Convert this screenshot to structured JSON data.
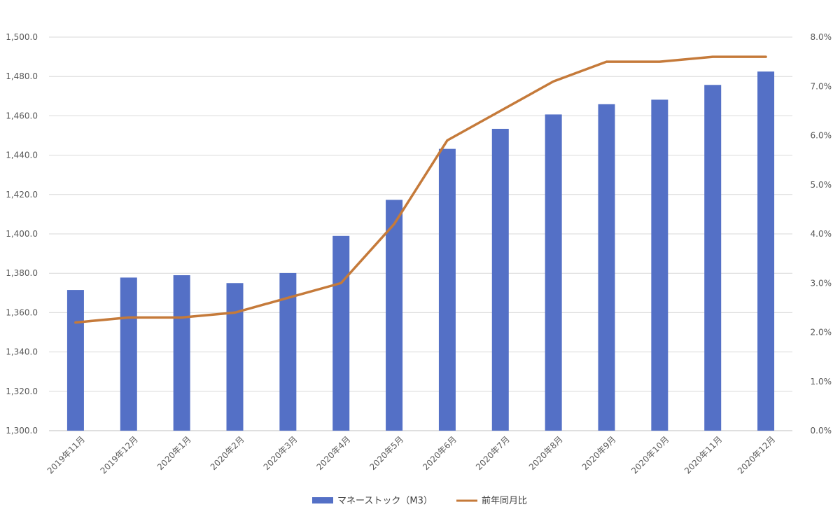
{
  "chart_data": {
    "type": "bar-line",
    "title": "",
    "categories": [
      "2019年11月",
      "2019年12月",
      "2020年1月",
      "2020年2月",
      "2020年3月",
      "2020年4月",
      "2020年5月",
      "2020年6月",
      "2020年7月",
      "2020年8月",
      "2020年9月",
      "2020年10月",
      "2020年11月",
      "2020年12月"
    ],
    "series": [
      {
        "name": "マネーストック（M3）",
        "type": "bar",
        "axis": "left",
        "color": "#5470C6",
        "values": [
          1371.5,
          1377.8,
          1379.0,
          1375.0,
          1380.1,
          1399.0,
          1417.3,
          1443.2,
          1453.4,
          1460.7,
          1465.9,
          1468.2,
          1475.7,
          1482.5
        ]
      },
      {
        "name": "前年同月比",
        "type": "line",
        "axis": "right",
        "color": "#C57A3A",
        "values": [
          2.2,
          2.3,
          2.3,
          2.4,
          2.7,
          3.0,
          4.2,
          5.9,
          6.5,
          7.1,
          7.5,
          7.5,
          7.6,
          7.6
        ]
      }
    ],
    "y_left": {
      "min": 1300,
      "max": 1500,
      "ticks": [
        "1,300.0",
        "1,320.0",
        "1,340.0",
        "1,360.0",
        "1,380.0",
        "1,400.0",
        "1,420.0",
        "1,440.0",
        "1,460.0",
        "1,480.0",
        "1,500.0"
      ]
    },
    "y_right": {
      "min": 0,
      "max": 8,
      "ticks": [
        "0.0%",
        "1.0%",
        "2.0%",
        "3.0%",
        "4.0%",
        "5.0%",
        "6.0%",
        "7.0%",
        "8.0%"
      ]
    },
    "grid": true,
    "legend_position": "bottom"
  }
}
